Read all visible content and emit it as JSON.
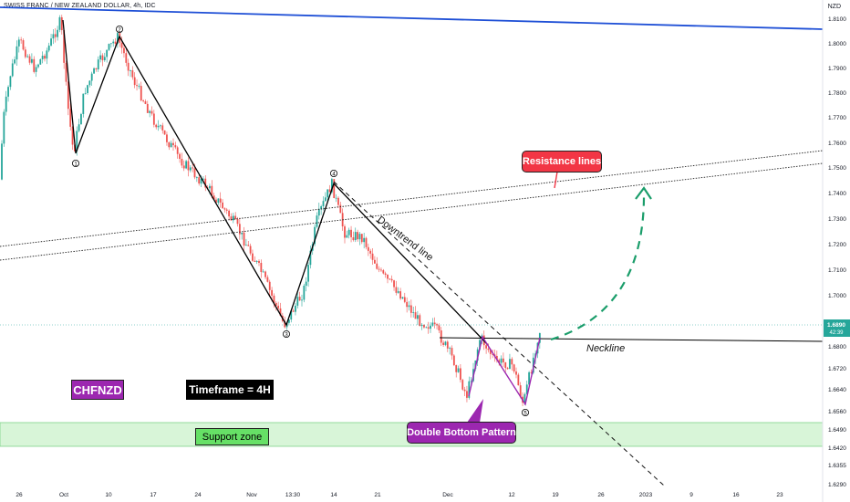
{
  "header": {
    "symbol_title": "SWISS FRANC / NEW ZEALAND DOLLAR, 4h, IDC",
    "currency": "NZD"
  },
  "current_price": {
    "value": "1.6890",
    "countdown": "42:39"
  },
  "colors": {
    "up_candle": "#26a69a",
    "down_candle": "#ef5350",
    "channel_line": "#1e4fd6",
    "wave_line": "#000000",
    "double_bottom": "#9c27b0",
    "projection": "#1a9d6a",
    "support_fill": "#d8f5d8",
    "label_red": "#f23645",
    "label_purple": "#9c27b0"
  },
  "annotations": {
    "resistance_label": "Resistance lines",
    "downtrend_label": "Downtrend line",
    "neckline_label": "Neckline",
    "pattern_label": "Double Bottom Pattern",
    "symbol_badge": "CHFNZD",
    "timeframe_badge": "Timeframe = 4H",
    "support_label": "Support zone",
    "wave_points": [
      "1",
      "2",
      "3",
      "4",
      "5"
    ]
  },
  "chart_data": {
    "type": "candlestick",
    "title": "SWISS FRANC / NEW ZEALAND DOLLAR, 4h, IDC",
    "ylabel": "NZD",
    "ylim": [
      1.626,
      1.813
    ],
    "y_ticks": [
      "1.8100",
      "1.8000",
      "1.7900",
      "1.7800",
      "1.7700",
      "1.7600",
      "1.7500",
      "1.7400",
      "1.7300",
      "1.7200",
      "1.7100",
      "1.7000",
      "1.6800",
      "1.6720",
      "1.6640",
      "1.6560",
      "1.6490",
      "1.6420",
      "1.6355",
      "1.6290"
    ],
    "x_ticks": [
      "26",
      "Oct",
      "10",
      "17",
      "24",
      "Nov",
      "13:30",
      "14",
      "21",
      "Dec",
      "12",
      "19",
      "26",
      "2023",
      "9",
      "16",
      "23"
    ],
    "wave_path": [
      {
        "label": "",
        "price": 1.811
      },
      {
        "label": "1",
        "price": 1.7565
      },
      {
        "label": "2",
        "price": 1.8022
      },
      {
        "label": "3",
        "price": 1.6893
      },
      {
        "label": "4",
        "price": 1.7445
      },
      {
        "label": "",
        "price": 1.6835
      }
    ],
    "double_bottom": [
      {
        "label": "",
        "price": 1.6612
      },
      {
        "label": "",
        "price": 1.6838
      },
      {
        "label": "5",
        "price": 1.6585
      },
      {
        "label": "",
        "price": 1.684
      }
    ],
    "neckline_price": 1.6836,
    "support_zone": [
      1.6435,
      1.6525
    ],
    "projection_target": 1.7405,
    "last_price": 1.689
  }
}
